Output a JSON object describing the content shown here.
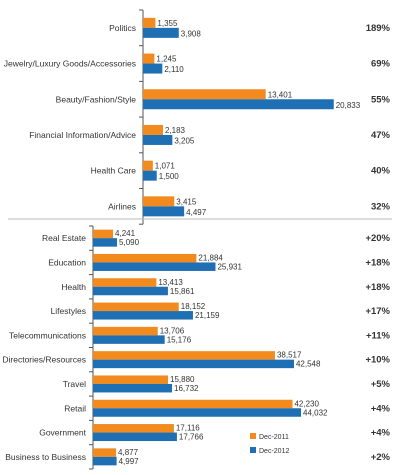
{
  "chart_data": [
    {
      "type": "bar",
      "orientation": "horizontal",
      "categories": [
        "Politics",
        "Jewelry/Luxury Goods/Accessories",
        "Beauty/Fashion/Style",
        "Financial Information/Advice",
        "Health Care",
        "Airlines"
      ],
      "series": [
        {
          "name": "Dec-2011",
          "values": [
            1355,
            1245,
            13401,
            2183,
            1071,
            3415
          ]
        },
        {
          "name": "Dec-2012",
          "values": [
            3908,
            2110,
            20833,
            3205,
            1500,
            4497
          ]
        }
      ],
      "value_labels": [
        [
          "1,355",
          "1,245",
          "13,401",
          "2,183",
          "1,071",
          "3,415"
        ],
        [
          "3,908",
          "2,110",
          "20,833",
          "3,205",
          "1,500",
          "4,497"
        ]
      ],
      "growth_labels": [
        "189%",
        "69%",
        "55%",
        "47%",
        "40%",
        "32%"
      ],
      "xlim": [
        0,
        22500
      ]
    },
    {
      "type": "bar",
      "orientation": "horizontal",
      "categories": [
        "Real Estate",
        "Education",
        "Health",
        "Lifestyles",
        "Telecommunications",
        "Directories/Resources",
        "Travel",
        "Retail",
        "Government",
        "Business to Business"
      ],
      "series": [
        {
          "name": "Dec-2011",
          "values": [
            4241,
            21884,
            13413,
            18152,
            13706,
            38517,
            15880,
            42230,
            17116,
            4877
          ]
        },
        {
          "name": "Dec-2012",
          "values": [
            5090,
            25931,
            15861,
            21159,
            15176,
            42548,
            16732,
            44032,
            17766,
            4997
          ]
        }
      ],
      "value_labels": [
        [
          "4,241",
          "21,884",
          "13,413",
          "18,152",
          "13,706",
          "38,517",
          "15,880",
          "42,230",
          "17,116",
          "4,877"
        ],
        [
          "5,090",
          "25,931",
          "15,861",
          "21,159",
          "15,176",
          "42,548",
          "16,732",
          "44,032",
          "17,766",
          "4,997"
        ]
      ],
      "growth_labels": [
        "+20%",
        "+18%",
        "+18%",
        "+17%",
        "+11%",
        "+10%",
        "+5%",
        "+4%",
        "+4%",
        "+2%"
      ],
      "xlim": [
        0,
        45300
      ]
    }
  ],
  "legend": {
    "position": "bottom-right",
    "items": [
      {
        "label": "Dec-2011",
        "color": "#f28a1e"
      },
      {
        "label": "Dec-2012",
        "color": "#1f6fb5"
      }
    ]
  },
  "colors": {
    "series_2011": "#f28a1e",
    "series_2012": "#1f6fb5",
    "axis": "#555555",
    "separator": "#bbbbbb"
  }
}
